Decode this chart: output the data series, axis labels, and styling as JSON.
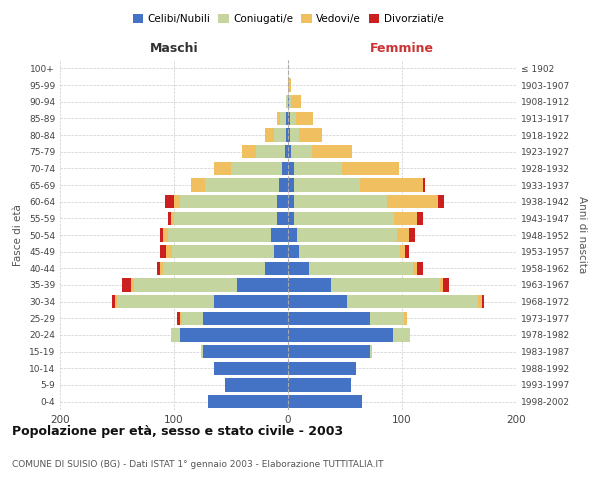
{
  "age_groups": [
    "0-4",
    "5-9",
    "10-14",
    "15-19",
    "20-24",
    "25-29",
    "30-34",
    "35-39",
    "40-44",
    "45-49",
    "50-54",
    "55-59",
    "60-64",
    "65-69",
    "70-74",
    "75-79",
    "80-84",
    "85-89",
    "90-94",
    "95-99",
    "100+"
  ],
  "birth_years": [
    "1998-2002",
    "1993-1997",
    "1988-1992",
    "1983-1987",
    "1978-1982",
    "1973-1977",
    "1968-1972",
    "1963-1967",
    "1958-1962",
    "1953-1957",
    "1948-1952",
    "1943-1947",
    "1938-1942",
    "1933-1937",
    "1928-1932",
    "1923-1927",
    "1918-1922",
    "1913-1917",
    "1908-1912",
    "1903-1907",
    "≤ 1902"
  ],
  "colors": {
    "celibi": "#4472c4",
    "coniugati": "#c5d5a0",
    "vedovi": "#f0c060",
    "divorziati": "#cc2020"
  },
  "males": {
    "celibi": [
      70,
      55,
      65,
      75,
      95,
      75,
      65,
      45,
      20,
      12,
      15,
      10,
      10,
      8,
      5,
      3,
      2,
      2,
      0,
      0,
      0
    ],
    "coniugati": [
      0,
      0,
      0,
      1,
      8,
      18,
      85,
      90,
      90,
      90,
      90,
      90,
      85,
      65,
      45,
      25,
      10,
      5,
      2,
      0,
      0
    ],
    "vedovi": [
      0,
      0,
      0,
      0,
      0,
      2,
      2,
      3,
      2,
      5,
      5,
      3,
      5,
      12,
      15,
      12,
      8,
      3,
      0,
      0,
      0
    ],
    "divorziati": [
      0,
      0,
      0,
      0,
      0,
      2,
      2,
      8,
      3,
      5,
      2,
      2,
      8,
      0,
      0,
      0,
      0,
      0,
      0,
      0,
      0
    ]
  },
  "females": {
    "celibi": [
      65,
      55,
      60,
      72,
      92,
      72,
      52,
      38,
      18,
      10,
      8,
      5,
      5,
      5,
      5,
      3,
      2,
      2,
      1,
      0,
      0
    ],
    "coniugati": [
      0,
      0,
      0,
      2,
      15,
      30,
      115,
      95,
      92,
      88,
      88,
      88,
      82,
      58,
      42,
      18,
      8,
      5,
      2,
      0,
      0
    ],
    "vedovi": [
      0,
      0,
      0,
      0,
      0,
      2,
      3,
      3,
      3,
      5,
      10,
      20,
      45,
      55,
      50,
      35,
      20,
      15,
      8,
      3,
      0
    ],
    "divorziati": [
      0,
      0,
      0,
      0,
      0,
      0,
      2,
      5,
      5,
      3,
      5,
      5,
      5,
      2,
      0,
      0,
      0,
      0,
      0,
      0,
      0
    ]
  },
  "title": "Popolazione per età, sesso e stato civile - 2003",
  "subtitle": "COMUNE DI SUISIO (BG) - Dati ISTAT 1° gennaio 2003 - Elaborazione TUTTITALIA.IT",
  "label_maschi": "Maschi",
  "label_femmine": "Femmine",
  "ylabel_left": "Fasce di età",
  "ylabel_right": "Anni di nascita",
  "xlim": 200,
  "legend_labels": [
    "Celibi/Nubili",
    "Coniugati/e",
    "Vedovi/e",
    "Divorziati/e"
  ]
}
